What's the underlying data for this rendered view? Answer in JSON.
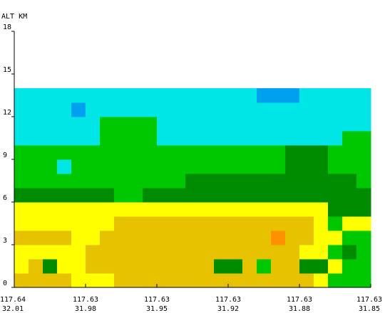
{
  "chart_data": {
    "type": "heatmap",
    "title": "",
    "ylabel": "ALT KM",
    "xlabel": "",
    "ylim": [
      0,
      18
    ],
    "y_ticks": [
      "0",
      "3",
      "6",
      "9",
      "12",
      "15",
      "18"
    ],
    "x_ticks": [
      {
        "lon": "117.64",
        "lat": "32.01"
      },
      {
        "lon": "117.63",
        "lat": "31.98"
      },
      {
        "lon": "117.63",
        "lat": "31.95"
      },
      {
        "lon": "117.63",
        "lat": "31.92"
      },
      {
        "lon": "117.63",
        "lat": "31.88"
      },
      {
        "lon": "117.63",
        "lat": "31.85"
      }
    ],
    "column_count": 25,
    "altitude_rows_km": [
      1,
      2,
      3,
      4,
      5,
      6,
      7,
      8,
      9,
      10,
      11,
      12,
      13,
      14
    ],
    "palette": {
      "0": "#ffffff",
      "1": "#e6c200",
      "2": "#ffff00",
      "3": "#008c00",
      "4": "#00c800",
      "5": "#00e6e6",
      "6": "#00a0f0",
      "7": "#ff9000"
    },
    "grid": [
      "1111222111111111111112444",
      "2132211111111133141133244",
      "2222211111111111111122434",
      "1111221111111111117112244",
      "2222222111111111111112422",
      "2222222222222222222222333",
      "3333333443333333333333333",
      "4444444444443333333333334",
      "4445444444444444444333444",
      "4444444444444444444333444",
      "5555554444555555555555544",
      "5555554444555555555555555",
      "5555655555555555555555555",
      "5555555555555555566655555"
    ]
  }
}
